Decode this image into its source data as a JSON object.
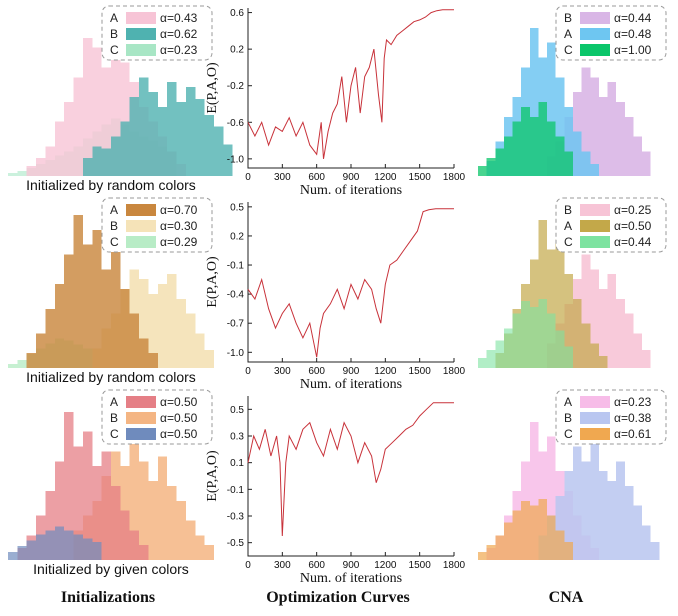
{
  "chart_data": [
    {
      "panel": "init-1",
      "type": "histogram",
      "caption": "Initialized by random colors",
      "legend": [
        {
          "label": "A",
          "alpha_text": "α=0.43",
          "color": "#f7c4d6"
        },
        {
          "label": "B",
          "alpha_text": "α=0.62",
          "color": "#4fb2b0"
        },
        {
          "label": "C",
          "alpha_text": "α=0.23",
          "color": "#a8e6c5"
        }
      ],
      "series": [
        {
          "label": "C",
          "color": "#b9ecd1",
          "opacity": 0.75,
          "start": 0,
          "values": [
            3,
            5,
            8,
            12,
            16,
            21,
            25,
            30,
            38,
            45,
            52,
            58,
            52,
            45,
            40,
            36,
            30,
            25
          ]
        },
        {
          "label": "A",
          "color": "#f7c4d6",
          "opacity": 0.8,
          "start": 2,
          "values": [
            10,
            18,
            30,
            55,
            75,
            100,
            140,
            130,
            110,
            150,
            115,
            95,
            70,
            55,
            40,
            25,
            12
          ]
        },
        {
          "label": "B",
          "color": "#4fb2b0",
          "opacity": 0.8,
          "start": 8,
          "values": [
            18,
            30,
            28,
            40,
            55,
            80,
            100,
            85,
            70,
            95,
            75,
            90,
            78,
            62,
            50,
            32
          ]
        }
      ]
    },
    {
      "panel": "init-2",
      "type": "histogram",
      "caption": "Initialized by random colors",
      "legend": [
        {
          "label": "A",
          "alpha_text": "α=0.70",
          "color": "#c9873e"
        },
        {
          "label": "B",
          "alpha_text": "α=0.30",
          "color": "#f5e3b8"
        },
        {
          "label": "C",
          "alpha_text": "α=0.29",
          "color": "#b8ecc6"
        }
      ],
      "series": [
        {
          "label": "C",
          "color": "#b8ecc6",
          "opacity": 0.8,
          "start": 0,
          "values": [
            4,
            8,
            14,
            20,
            25,
            30,
            28,
            24,
            20
          ]
        },
        {
          "label": "B",
          "color": "#f3dfb0",
          "opacity": 0.85,
          "start": 9,
          "values": [
            20,
            40,
            55,
            80,
            100,
            90,
            75,
            85,
            95,
            70,
            55,
            35,
            18
          ]
        },
        {
          "label": "A",
          "color": "#c9873e",
          "opacity": 0.82,
          "start": 2,
          "values": [
            15,
            35,
            60,
            85,
            115,
            155,
            125,
            140,
            100,
            120,
            80,
            55,
            30,
            15
          ]
        }
      ]
    },
    {
      "panel": "init-3",
      "type": "histogram",
      "caption": "Initialized by given colors",
      "legend": [
        {
          "label": "A",
          "alpha_text": "α=0.50",
          "color": "#e57f86"
        },
        {
          "label": "B",
          "alpha_text": "α=0.50",
          "color": "#f4b583"
        },
        {
          "label": "C",
          "alpha_text": "α=0.50",
          "color": "#6f8bbd"
        }
      ],
      "series": [
        {
          "label": "B",
          "color": "#f4b583",
          "opacity": 0.85,
          "start": 7,
          "values": [
            30,
            45,
            60,
            85,
            110,
            95,
            120,
            100,
            80,
            105,
            75,
            60,
            40,
            25,
            15
          ]
        },
        {
          "label": "A",
          "color": "#e57f86",
          "opacity": 0.75,
          "start": 1,
          "values": [
            12,
            25,
            45,
            70,
            100,
            150,
            115,
            130,
            95,
            110,
            75,
            50,
            30,
            15
          ]
        },
        {
          "label": "C",
          "color": "#6f8bbd",
          "opacity": 0.7,
          "start": 0,
          "values": [
            8,
            14,
            20,
            26,
            30,
            34,
            30,
            26,
            22,
            18
          ]
        }
      ]
    },
    {
      "panel": "curve-1",
      "type": "line",
      "xlabel": "Num. of iterations",
      "ylabel": "E(P,A,O)",
      "xlim": [
        0,
        1800
      ],
      "ylim": [
        -1.1,
        0.65
      ],
      "xticks": [
        0,
        300,
        600,
        900,
        1200,
        1500,
        1800
      ],
      "yticks": [
        -1.0,
        -0.6,
        -0.2,
        0.2,
        0.6
      ],
      "ytick_labels": [
        "-1.0",
        "-0.6",
        "-0.2",
        "0.2",
        "0.6"
      ],
      "x": [
        0,
        60,
        120,
        180,
        240,
        300,
        360,
        420,
        480,
        540,
        600,
        640,
        660,
        700,
        740,
        780,
        820,
        860,
        900,
        940,
        980,
        1020,
        1060,
        1100,
        1140,
        1170,
        1190,
        1210,
        1250,
        1300,
        1350,
        1400,
        1450,
        1500,
        1550,
        1600,
        1650,
        1700,
        1750,
        1800
      ],
      "y": [
        -0.6,
        -0.75,
        -0.6,
        -0.85,
        -0.65,
        -0.7,
        -0.55,
        -0.75,
        -0.6,
        -0.85,
        -0.95,
        -0.6,
        -1.0,
        -0.7,
        -0.5,
        -0.4,
        -0.1,
        -0.6,
        -0.2,
        0.0,
        -0.5,
        -0.1,
        0.0,
        0.2,
        -0.3,
        -0.6,
        0.1,
        0.3,
        0.25,
        0.35,
        0.4,
        0.45,
        0.5,
        0.52,
        0.55,
        0.6,
        0.62,
        0.63,
        0.63,
        0.63
      ]
    },
    {
      "panel": "curve-2",
      "type": "line",
      "xlabel": "Num. of iterations",
      "ylabel": "E(P,A,O)",
      "xlim": [
        0,
        1800
      ],
      "ylim": [
        -1.1,
        0.55
      ],
      "xticks": [
        0,
        300,
        600,
        900,
        1200,
        1500,
        1800
      ],
      "yticks": [
        -1.0,
        -0.7,
        -0.4,
        -0.1,
        0.2,
        0.5
      ],
      "ytick_labels": [
        "-1.0",
        "-0.7",
        "-0.4",
        "-0.1",
        "0.2",
        "0.5"
      ],
      "x": [
        0,
        60,
        120,
        180,
        240,
        300,
        360,
        420,
        480,
        540,
        600,
        630,
        660,
        720,
        780,
        840,
        900,
        960,
        1020,
        1080,
        1120,
        1160,
        1200,
        1240,
        1300,
        1360,
        1420,
        1480,
        1530,
        1580,
        1640,
        1700,
        1760,
        1800
      ],
      "y": [
        -0.35,
        -0.45,
        -0.25,
        -0.55,
        -0.75,
        -0.6,
        -0.5,
        -0.7,
        -0.85,
        -0.7,
        -1.05,
        -0.75,
        -0.6,
        -0.5,
        -0.35,
        -0.55,
        -0.3,
        -0.45,
        -0.25,
        -0.35,
        -0.55,
        -0.7,
        -0.3,
        -0.1,
        -0.05,
        0.05,
        0.15,
        0.25,
        0.45,
        0.47,
        0.48,
        0.48,
        0.48,
        0.48
      ]
    },
    {
      "panel": "curve-3",
      "type": "line",
      "xlabel": "Num. of iterations",
      "ylabel": "E(P,A,O)",
      "xlim": [
        0,
        1800
      ],
      "ylim": [
        -0.6,
        0.6
      ],
      "xticks": [
        0,
        300,
        600,
        900,
        1200,
        1500,
        1800
      ],
      "yticks": [
        -0.5,
        -0.3,
        -0.1,
        0.1,
        0.3,
        0.5
      ],
      "ytick_labels": [
        "-0.5",
        "-0.3",
        "-0.1",
        "0.1",
        "0.3",
        "0.5"
      ],
      "x": [
        0,
        50,
        100,
        150,
        200,
        250,
        280,
        300,
        330,
        360,
        420,
        480,
        540,
        600,
        660,
        720,
        780,
        840,
        900,
        960,
        1020,
        1080,
        1120,
        1160,
        1200,
        1260,
        1320,
        1380,
        1440,
        1500,
        1560,
        1620,
        1700,
        1800
      ],
      "y": [
        0.1,
        0.3,
        0.2,
        0.35,
        0.15,
        0.3,
        0.1,
        -0.45,
        0.1,
        0.3,
        0.2,
        0.35,
        0.4,
        0.25,
        0.15,
        0.35,
        0.2,
        0.4,
        0.3,
        0.1,
        0.25,
        0.15,
        -0.05,
        0.05,
        0.2,
        0.25,
        0.3,
        0.35,
        0.38,
        0.45,
        0.5,
        0.55,
        0.55,
        0.55
      ]
    },
    {
      "panel": "cna-1",
      "type": "histogram",
      "legend": [
        {
          "label": "B",
          "alpha_text": "α=0.44",
          "color": "#d9b6e6"
        },
        {
          "label": "A",
          "alpha_text": "α=0.48",
          "color": "#6ec6f1"
        },
        {
          "label": "C",
          "alpha_text": "α=1.00",
          "color": "#0bc66a"
        }
      ],
      "series": [
        {
          "label": "B",
          "color": "#d9b6e6",
          "opacity": 0.9,
          "start": 8,
          "values": [
            20,
            35,
            60,
            85,
            110,
            100,
            80,
            95,
            75,
            60,
            40,
            25
          ]
        },
        {
          "label": "A",
          "color": "#6ec6f1",
          "opacity": 0.85,
          "start": 1,
          "values": [
            15,
            35,
            60,
            80,
            110,
            150,
            120,
            135,
            100,
            70,
            45,
            25,
            12
          ]
        },
        {
          "label": "C",
          "color": "#0bc66a",
          "opacity": 0.75,
          "start": 0,
          "values": [
            10,
            18,
            28,
            40,
            55,
            70,
            60,
            75,
            55,
            40,
            25
          ]
        }
      ]
    },
    {
      "panel": "cna-2",
      "type": "histogram",
      "legend": [
        {
          "label": "B",
          "alpha_text": "α=0.25",
          "color": "#f7c4d6"
        },
        {
          "label": "A",
          "alpha_text": "α=0.50",
          "color": "#c3a849"
        },
        {
          "label": "C",
          "alpha_text": "α=0.44",
          "color": "#7de3a0"
        }
      ],
      "series": [
        {
          "label": "B",
          "color": "#f7c4d6",
          "opacity": 0.9,
          "start": 8,
          "values": [
            25,
            45,
            65,
            90,
            115,
            100,
            80,
            95,
            70,
            55,
            35,
            18
          ]
        },
        {
          "label": "A",
          "color": "#c3a849",
          "opacity": 0.7,
          "start": 2,
          "values": [
            15,
            35,
            60,
            85,
            110,
            150,
            120,
            130,
            95,
            70,
            45,
            25,
            12
          ]
        },
        {
          "label": "C",
          "color": "#7de3a0",
          "opacity": 0.6,
          "start": 0,
          "values": [
            10,
            18,
            28,
            40,
            55,
            68,
            62,
            70,
            55,
            38,
            22
          ]
        }
      ]
    },
    {
      "panel": "cna-3",
      "type": "histogram",
      "legend": [
        {
          "label": "A",
          "alpha_text": "α=0.23",
          "color": "#f7bce8"
        },
        {
          "label": "B",
          "alpha_text": "α=0.38",
          "color": "#b9c6f0"
        },
        {
          "label": "C",
          "alpha_text": "α=0.61",
          "color": "#f0a850"
        }
      ],
      "series": [
        {
          "label": "A",
          "color": "#f7bce8",
          "opacity": 0.85,
          "start": 1,
          "values": [
            12,
            25,
            45,
            70,
            100,
            140,
            110,
            125,
            90,
            70,
            45,
            25,
            12
          ]
        },
        {
          "label": "B",
          "color": "#b9c6f0",
          "opacity": 0.85,
          "start": 7,
          "values": [
            25,
            45,
            65,
            90,
            115,
            100,
            120,
            90,
            80,
            100,
            75,
            55,
            35,
            18
          ]
        },
        {
          "label": "C",
          "color": "#f0a850",
          "opacity": 0.7,
          "start": 0,
          "values": [
            8,
            15,
            25,
            38,
            50,
            60,
            55,
            62,
            45,
            30,
            18
          ]
        }
      ]
    }
  ],
  "footer": {
    "col1": "Initializations",
    "col2": "Optimization Curves",
    "col3": "CNA"
  }
}
